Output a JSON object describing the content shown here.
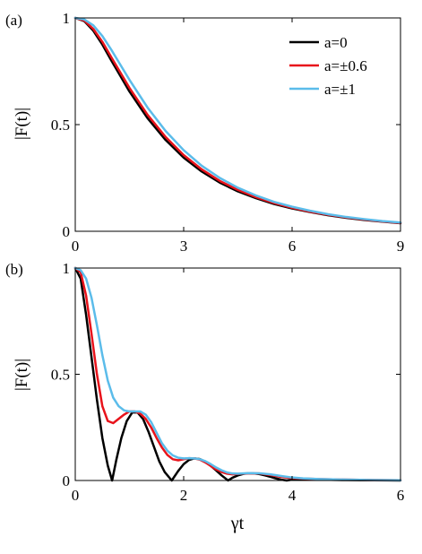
{
  "colors": {
    "a0": "#000000",
    "a06": "#e8131b",
    "a1": "#5bbcea",
    "axis": "#000000",
    "background": "#ffffff"
  },
  "chart_data": [
    {
      "type": "line",
      "panel_label": "(a)",
      "ylabel": "|F(t)|",
      "xlabel": "",
      "xlim": [
        0,
        9
      ],
      "ylim": [
        0,
        1
      ],
      "x_ticks": [
        "0",
        "3",
        "6",
        "9"
      ],
      "y_ticks": [
        "0",
        "0.5",
        "1"
      ],
      "grid": false,
      "legend_position": "top-right",
      "series": [
        {
          "name": "a=0",
          "color": "#000000",
          "x": [
            0,
            0.25,
            0.5,
            0.75,
            1,
            1.5,
            2,
            2.5,
            3,
            3.5,
            4,
            4.5,
            5,
            5.5,
            6,
            6.5,
            7,
            7.5,
            8,
            8.5,
            9
          ],
          "y": [
            1.0,
            0.985,
            0.94,
            0.875,
            0.8,
            0.655,
            0.53,
            0.428,
            0.345,
            0.28,
            0.228,
            0.187,
            0.155,
            0.128,
            0.107,
            0.09,
            0.075,
            0.063,
            0.053,
            0.045,
            0.038
          ]
        },
        {
          "name": "a=±0.6",
          "color": "#e8131b",
          "x": [
            0,
            0.25,
            0.5,
            0.75,
            1,
            1.5,
            2,
            2.5,
            3,
            3.5,
            4,
            4.5,
            5,
            5.5,
            6,
            6.5,
            7,
            7.5,
            8,
            8.5,
            9
          ],
          "y": [
            1.0,
            0.988,
            0.948,
            0.888,
            0.815,
            0.672,
            0.546,
            0.442,
            0.357,
            0.29,
            0.236,
            0.194,
            0.16,
            0.132,
            0.11,
            0.092,
            0.077,
            0.065,
            0.055,
            0.046,
            0.039
          ]
        },
        {
          "name": "a=±1",
          "color": "#5bbcea",
          "x": [
            0,
            0.25,
            0.5,
            0.75,
            1,
            1.5,
            2,
            2.5,
            3,
            3.5,
            4,
            4.5,
            5,
            5.5,
            6,
            6.5,
            7,
            7.5,
            8,
            8.5,
            9
          ],
          "y": [
            1.0,
            0.993,
            0.965,
            0.915,
            0.85,
            0.71,
            0.58,
            0.47,
            0.38,
            0.307,
            0.25,
            0.204,
            0.168,
            0.138,
            0.115,
            0.096,
            0.08,
            0.067,
            0.057,
            0.048,
            0.041
          ]
        }
      ]
    },
    {
      "type": "line",
      "panel_label": "(b)",
      "ylabel": "|F(t)|",
      "xlabel": "γt",
      "xlim": [
        0,
        6
      ],
      "ylim": [
        0,
        1
      ],
      "x_ticks": [
        "0",
        "2",
        "4",
        "6"
      ],
      "y_ticks": [
        "0",
        "0.5",
        "1"
      ],
      "grid": false,
      "series": [
        {
          "name": "a=0",
          "color": "#000000",
          "x": [
            0,
            0.1,
            0.2,
            0.3,
            0.4,
            0.5,
            0.6,
            0.68,
            0.76,
            0.85,
            0.95,
            1.05,
            1.15,
            1.25,
            1.35,
            1.45,
            1.55,
            1.65,
            1.78,
            1.9,
            2.0,
            2.1,
            2.2,
            2.3,
            2.4,
            2.5,
            2.6,
            2.7,
            2.82,
            2.9,
            3.0,
            3.1,
            3.2,
            3.3,
            3.4,
            3.5,
            3.6,
            3.7,
            3.8,
            3.9,
            4.0,
            4.1,
            4.2,
            4.3,
            4.5,
            5.0,
            5.5,
            6.0
          ],
          "y": [
            1.0,
            0.95,
            0.78,
            0.58,
            0.38,
            0.2,
            0.07,
            0.0,
            0.1,
            0.2,
            0.28,
            0.32,
            0.32,
            0.29,
            0.23,
            0.16,
            0.09,
            0.04,
            0.0,
            0.045,
            0.077,
            0.097,
            0.104,
            0.101,
            0.088,
            0.069,
            0.047,
            0.024,
            0.0,
            0.013,
            0.024,
            0.031,
            0.034,
            0.033,
            0.03,
            0.024,
            0.017,
            0.01,
            0.004,
            0.0,
            0.004,
            0.007,
            0.008,
            0.007,
            0.004,
            0.002,
            0.001,
            0.0
          ]
        },
        {
          "name": "a=±0.6",
          "color": "#e8131b",
          "x": [
            0,
            0.1,
            0.2,
            0.3,
            0.4,
            0.5,
            0.6,
            0.7,
            0.8,
            0.9,
            1.0,
            1.1,
            1.2,
            1.3,
            1.4,
            1.5,
            1.6,
            1.7,
            1.8,
            1.9,
            2.0,
            2.1,
            2.2,
            2.3,
            2.4,
            2.5,
            2.6,
            2.7,
            2.8,
            2.9,
            3.0,
            3.2,
            3.4,
            3.6,
            3.8,
            4.0,
            4.2,
            4.5,
            5.0,
            5.5,
            6.0
          ],
          "y": [
            1.0,
            0.98,
            0.87,
            0.69,
            0.5,
            0.35,
            0.28,
            0.27,
            0.29,
            0.31,
            0.325,
            0.325,
            0.315,
            0.29,
            0.25,
            0.2,
            0.155,
            0.12,
            0.1,
            0.095,
            0.1,
            0.105,
            0.104,
            0.098,
            0.085,
            0.068,
            0.052,
            0.04,
            0.032,
            0.029,
            0.031,
            0.034,
            0.033,
            0.026,
            0.017,
            0.011,
            0.009,
            0.007,
            0.004,
            0.002,
            0.001
          ]
        },
        {
          "name": "a=±1",
          "color": "#5bbcea",
          "x": [
            0,
            0.1,
            0.2,
            0.3,
            0.4,
            0.5,
            0.6,
            0.7,
            0.8,
            0.9,
            1.0,
            1.1,
            1.2,
            1.3,
            1.4,
            1.5,
            1.6,
            1.7,
            1.8,
            1.9,
            2.0,
            2.1,
            2.2,
            2.3,
            2.4,
            2.5,
            2.6,
            2.7,
            2.8,
            2.9,
            3.0,
            3.2,
            3.4,
            3.6,
            3.8,
            4.0,
            4.2,
            4.5,
            5.0,
            5.5,
            6.0
          ],
          "y": [
            1.0,
            0.99,
            0.95,
            0.86,
            0.73,
            0.59,
            0.47,
            0.39,
            0.35,
            0.33,
            0.325,
            0.325,
            0.325,
            0.31,
            0.275,
            0.225,
            0.175,
            0.14,
            0.118,
            0.107,
            0.104,
            0.105,
            0.104,
            0.1,
            0.091,
            0.077,
            0.061,
            0.048,
            0.038,
            0.033,
            0.032,
            0.035,
            0.034,
            0.029,
            0.021,
            0.014,
            0.01,
            0.007,
            0.004,
            0.002,
            0.001
          ]
        }
      ]
    }
  ],
  "legend": [
    {
      "label": "a=0",
      "color": "#000000"
    },
    {
      "label": "a=±0.6",
      "color": "#e8131b"
    },
    {
      "label": "a=±1",
      "color": "#5bbcea"
    }
  ]
}
